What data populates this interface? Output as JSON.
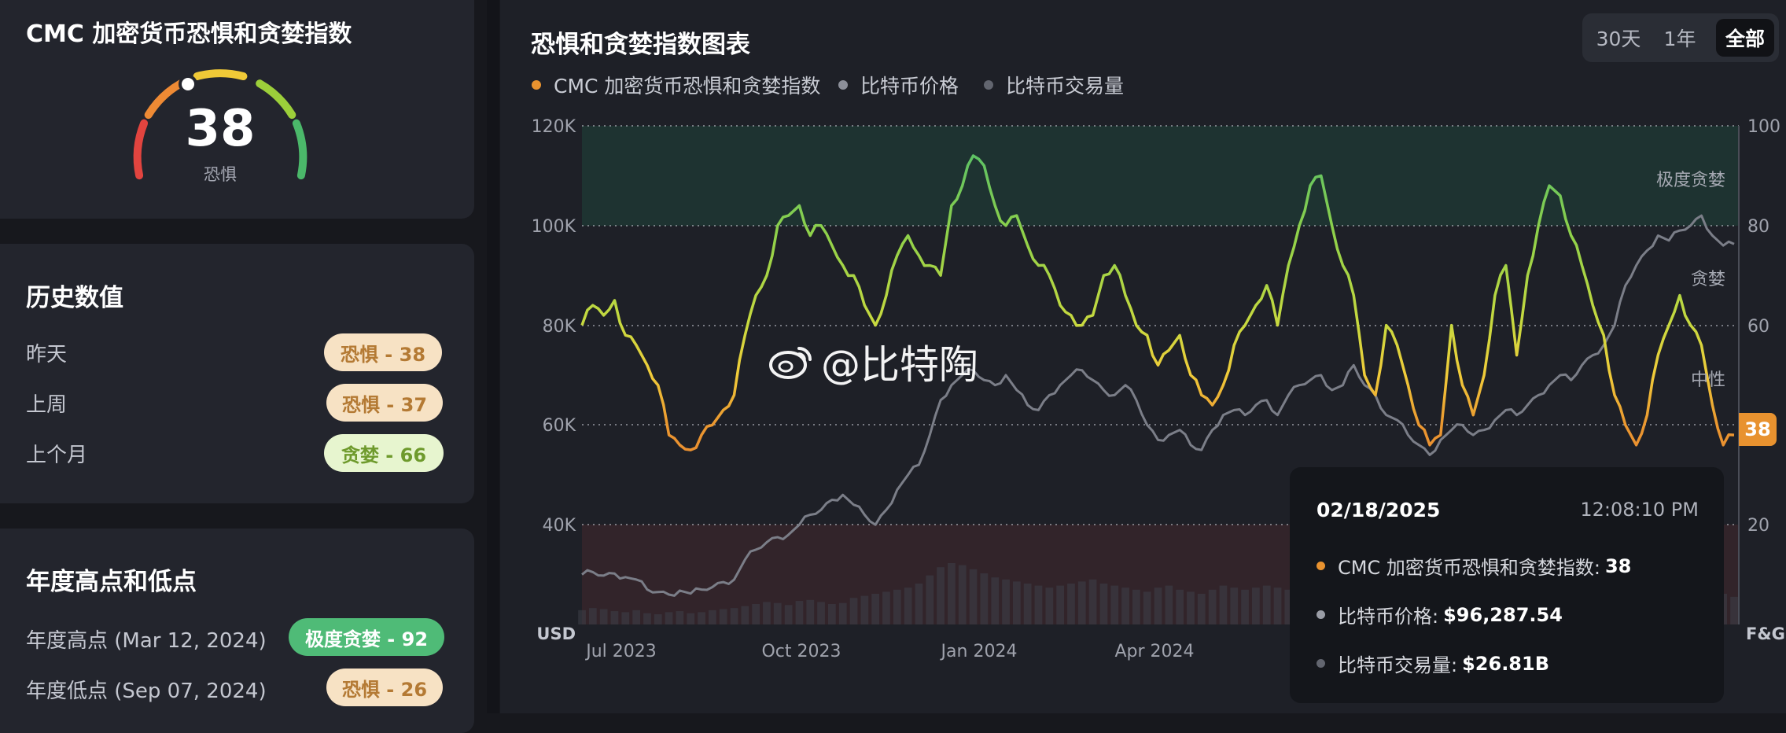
{
  "sidebar": {
    "index_card": {
      "title": "CMC 加密货币恐惧和贪婪指数",
      "value": "38",
      "label": "恐惧"
    },
    "history_card": {
      "title": "历史数值",
      "rows": [
        {
          "label": "昨天",
          "badge": "恐惧 - 38"
        },
        {
          "label": "上周",
          "badge": "恐惧 - 37"
        },
        {
          "label": "上个月",
          "badge": "贪婪 - 66"
        }
      ]
    },
    "yearly_card": {
      "title": "年度高点和低点",
      "rows": [
        {
          "label": "年度高点 (Mar 12, 2024)",
          "badge": "极度贪婪 - 92"
        },
        {
          "label": "年度低点 (Sep 07, 2024)",
          "badge": "恐惧 - 26"
        }
      ]
    }
  },
  "chart_panel": {
    "title": "恐惧和贪婪指数图表",
    "range_buttons": [
      "30天",
      "1年",
      "全部"
    ],
    "active_range": "全部",
    "legend": [
      {
        "name": "CMC 加密货币恐惧和贪婪指数",
        "color": "#e8922f"
      },
      {
        "name": "比特币价格",
        "color": "#8c8f99"
      },
      {
        "name": "比特币交易量",
        "color": "#62656f"
      }
    ],
    "watermark": "@比特陶",
    "current_badge": "38",
    "tooltip": {
      "date": "02/18/2025",
      "time": "12:08:10 PM",
      "rows": [
        {
          "label": "CMC 加密货币恐惧和贪婪指数:",
          "value": "38",
          "color": "#e8922f"
        },
        {
          "label": "比特币价格:",
          "value": "$96,287.54",
          "color": "#9a9da6"
        },
        {
          "label": "比特币交易量:",
          "value": "$26.81B",
          "color": "#62656f"
        }
      ]
    }
  },
  "chart_data": {
    "type": "line",
    "x_tick_labels": [
      "Jul 2023",
      "Oct 2023",
      "Jan 2024",
      "Apr 2024"
    ],
    "y_left": {
      "label": "USD",
      "ticks": [
        "120K",
        "100K",
        "80K",
        "60K",
        "40K"
      ],
      "range": [
        20000,
        120000
      ]
    },
    "y_right": {
      "label": "F&G",
      "ticks": [
        "100",
        "80",
        "60",
        "40",
        "20"
      ],
      "range": [
        0,
        100
      ]
    },
    "zone_labels": [
      "极度贪婪",
      "贪婪",
      "中性"
    ],
    "grid": true,
    "series": [
      {
        "name": "CMC 加密货币恐惧和贪婪指数",
        "axis": "right",
        "values": [
          60,
          64,
          62,
          65,
          58,
          56,
          52,
          48,
          38,
          36,
          35,
          38,
          40,
          43,
          46,
          58,
          66,
          70,
          80,
          82,
          84,
          78,
          80,
          76,
          72,
          70,
          64,
          60,
          66,
          74,
          78,
          74,
          72,
          70,
          84,
          88,
          94,
          92,
          84,
          80,
          82,
          76,
          72,
          70,
          64,
          62,
          60,
          62,
          70,
          72,
          66,
          60,
          58,
          52,
          55,
          58,
          50,
          46,
          44,
          48,
          56,
          60,
          64,
          68,
          60,
          72,
          80,
          88,
          90,
          80,
          72,
          66,
          50,
          46,
          60,
          56,
          48,
          40,
          36,
          38,
          60,
          48,
          42,
          50,
          66,
          72,
          54,
          70,
          80,
          88,
          86,
          78,
          72,
          64,
          58,
          46,
          40,
          36,
          42,
          54,
          60,
          66,
          60,
          56,
          44,
          36,
          38
        ]
      },
      {
        "name": "比特币价格",
        "axis": "left",
        "values": [
          30000,
          30500,
          29800,
          30200,
          29500,
          29000,
          27000,
          26500,
          26000,
          26800,
          26200,
          27000,
          27500,
          28500,
          29000,
          33000,
          35000,
          36500,
          37500,
          38000,
          40000,
          42000,
          43000,
          45000,
          46000,
          44000,
          42000,
          40000,
          43000,
          47000,
          50000,
          52000,
          58000,
          65000,
          68000,
          70000,
          71000,
          69000,
          68000,
          70000,
          67000,
          64000,
          63000,
          66000,
          68000,
          70000,
          71000,
          69000,
          67000,
          66000,
          68000,
          65000,
          60000,
          57000,
          58000,
          59000,
          56000,
          55000,
          59000,
          62000,
          63000,
          62000,
          64000,
          65000,
          62000,
          66000,
          68000,
          69000,
          70000,
          67000,
          68000,
          72000,
          68000,
          66000,
          62000,
          61000,
          58000,
          56000,
          54000,
          57000,
          59000,
          60000,
          58000,
          59000,
          61000,
          63000,
          62000,
          64000,
          66000,
          68000,
          70000,
          69000,
          72000,
          74000,
          76000,
          80000,
          88000,
          92000,
          95000,
          98000,
          97000,
          99000,
          100000,
          102000,
          98000,
          96000,
          96287
        ]
      },
      {
        "name": "比特币交易量",
        "axis": "volume",
        "values": [
          14,
          16,
          15,
          13,
          12,
          14,
          11,
          10,
          12,
          13,
          11,
          12,
          14,
          15,
          16,
          18,
          20,
          22,
          21,
          19,
          23,
          24,
          22,
          20,
          21,
          26,
          28,
          30,
          32,
          34,
          36,
          40,
          48,
          56,
          60,
          58,
          54,
          50,
          46,
          44,
          42,
          40,
          38,
          36,
          38,
          40,
          42,
          44,
          40,
          38,
          36,
          34,
          32,
          36,
          38,
          34,
          32,
          30,
          34,
          38,
          36,
          34,
          36,
          38,
          36,
          34,
          32,
          30,
          30,
          28,
          30,
          36,
          34,
          32,
          30,
          34,
          36,
          30,
          28,
          32,
          30,
          28,
          30,
          32,
          34,
          36,
          38,
          40,
          44,
          48,
          52,
          50,
          48,
          46,
          44,
          40,
          42,
          46,
          50,
          48,
          44,
          40,
          38,
          36,
          34,
          30,
          27
        ]
      }
    ]
  }
}
